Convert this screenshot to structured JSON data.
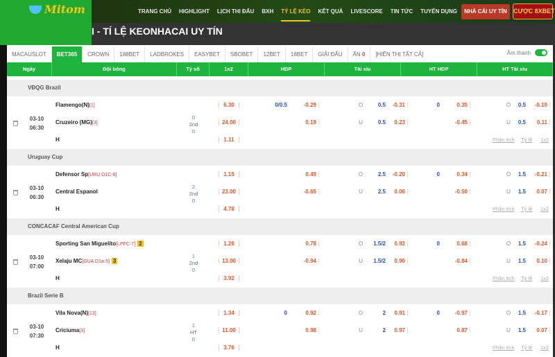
{
  "logo": "Mitom",
  "nav": [
    "TRANG CHỦ",
    "HIGHLIGHT",
    "LỊCH THI ĐẤU",
    "BXH",
    "TỶ LỆ KÈO",
    "KẾT QUẢ",
    "LIVESCORE",
    "TIN TỨC",
    "TUYỂN DỤNG"
  ],
  "nav_active": 4,
  "btn_nha": "NHÀ CÁI UY TÍN",
  "btn_8x": "CƯỢC 8XBET",
  "title": "I - TÍ LỆ KEONHACAI UY TÍN",
  "tabs": [
    "MACAUSLOT",
    "BET365",
    "CROWN",
    "188BET",
    "LADBROKES",
    "EASYBET",
    "SBOBET",
    "12BET",
    "18BET",
    "GIẢI ĐẤU"
  ],
  "tab_active": 1,
  "hidden": {
    "label": "ẨN",
    "count": "0",
    "show_all": "[HIỂN THỊ TẤT CẢ]"
  },
  "sound": "Âm thanh",
  "sound_on": true,
  "headers": [
    "Ngày",
    "Đội bóng",
    "Tỷ số",
    "1x2",
    "HDP",
    "Tài xỉu",
    "HT HDP",
    "HT Tài xỉu"
  ],
  "links": [
    "Phân tích",
    "Tỷ lệ",
    "1x2"
  ],
  "draw_label": "H",
  "colors": {
    "green": "#1eb43e",
    "odds": "#e0592a",
    "line": "#2850b8"
  },
  "matches": [
    {
      "league": "VĐQG Brazil",
      "date": "03-10",
      "time": "06:30",
      "home": {
        "name": "Flamengo(N)",
        "rank": "[1]",
        "card": ""
      },
      "away": {
        "name": "Cruzeiro (MG)",
        "rank": "[3]",
        "card": ""
      },
      "score": {
        "home": "0",
        "period": "2nd",
        "away": "0"
      },
      "x12": [
        "6.30",
        "24.00",
        "1.11"
      ],
      "rows": [
        {
          "hdp": "0/0.5",
          "hdp_o": "-0.29",
          "ou_lab": "O",
          "ou": "0.5",
          "ou_o": "-0.31",
          "hthdp": "0",
          "hthdp_o": "0.35",
          "htou_lab": "O",
          "htou": "0.5",
          "htou_o": "-0.19"
        },
        {
          "hdp": "",
          "hdp_o": "0.19",
          "ou_lab": "U",
          "ou": "0.5",
          "ou_o": "0.23",
          "hthdp": "",
          "hthdp_o": "-0.45",
          "htou_lab": "U",
          "htou": "0.5",
          "htou_o": "0.11"
        }
      ]
    },
    {
      "league": "Uruguay Cup",
      "date": "03-10",
      "time": "06:30",
      "home": {
        "name": "Defensor Sp",
        "rank": "[URU D1C-6]",
        "card": ""
      },
      "away": {
        "name": "Central Espanol",
        "rank": "",
        "card": ""
      },
      "score": {
        "home": "2",
        "period": "2nd",
        "away": "0"
      },
      "x12": [
        "1.15",
        "23.00",
        "4.78"
      ],
      "rows": [
        {
          "hdp": "",
          "hdp_o": "0.49",
          "ou_lab": "O",
          "ou": "2.5",
          "ou_o": "-0.20",
          "hthdp": "0",
          "hthdp_o": "0.34",
          "htou_lab": "O",
          "htou": "1.5",
          "htou_o": "-0.21"
        },
        {
          "hdp": "",
          "hdp_o": "-0.65",
          "ou_lab": "U",
          "ou": "2.5",
          "ou_o": "0.06",
          "hthdp": "",
          "hthdp_o": "-0.50",
          "htou_lab": "U",
          "htou": "1.5",
          "htou_o": "0.07"
        }
      ]
    },
    {
      "league": "CONCACAF Central American Cup",
      "date": "03-10",
      "time": "07:00",
      "home": {
        "name": "Sporting San Miguelito",
        "rank": "[LPFC-7]",
        "card": "2"
      },
      "away": {
        "name": "Xelaju MC",
        "rank": "[GUA D1a-5]",
        "card": "3"
      },
      "score": {
        "home": "1",
        "period": "2nd",
        "away": "0"
      },
      "x12": [
        "1.26",
        "13.00",
        "3.92"
      ],
      "rows": [
        {
          "hdp": "",
          "hdp_o": "0.78",
          "ou_lab": "O",
          "ou": "1.5/2",
          "ou_o": "0.92",
          "hthdp": "0",
          "hthdp_o": "0.68",
          "htou_lab": "O",
          "htou": "1.5",
          "htou_o": "-0.24"
        },
        {
          "hdp": "",
          "hdp_o": "-0.94",
          "ou_lab": "U",
          "ou": "1.5/2",
          "ou_o": "0.90",
          "hthdp": "",
          "hthdp_o": "-0.84",
          "htou_lab": "U",
          "htou": "1.5",
          "htou_o": "0.10"
        }
      ]
    },
    {
      "league": "Brazil Serie B",
      "date": "03-10",
      "time": "07:30",
      "home": {
        "name": "Vila Nova(N)",
        "rank": "[13]",
        "card": ""
      },
      "away": {
        "name": "Criciuma",
        "rank": "[3]",
        "card": ""
      },
      "score": {
        "home": "1",
        "period": "HT",
        "away": "0"
      },
      "x12": [
        "1.34",
        "11.00",
        "3.76"
      ],
      "rows": [
        {
          "hdp": "0",
          "hdp_o": "0.92",
          "ou_lab": "O",
          "ou": "2",
          "ou_o": "0.91",
          "hthdp": "0",
          "hthdp_o": "-0.97",
          "htou_lab": "O",
          "htou": "1.5",
          "htou_o": "-0.17"
        },
        {
          "hdp": "",
          "hdp_o": "0.98",
          "ou_lab": "U",
          "ou": "2",
          "ou_o": "0.97",
          "hthdp": "",
          "hthdp_o": "0.87",
          "htou_lab": "U",
          "htou": "1.5",
          "htou_o": "0.07"
        }
      ]
    }
  ]
}
